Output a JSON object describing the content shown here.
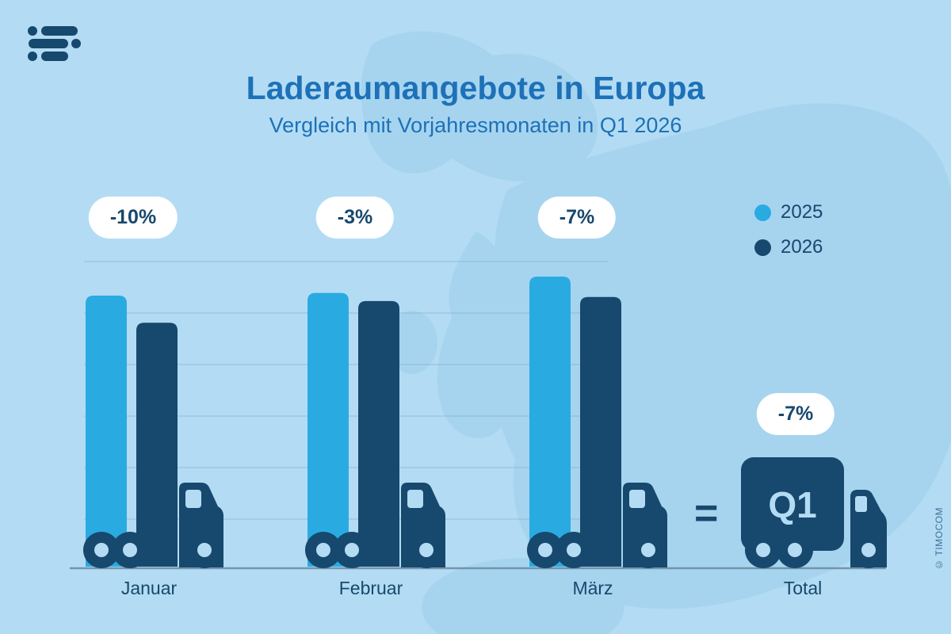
{
  "chart_data": {
    "type": "bar",
    "title": "Laderaumangebote in Europa",
    "subtitle": "Vergleich mit Vorjahresmonaten in Q1 2026",
    "categories": [
      "Januar",
      "Februar",
      "März"
    ],
    "series": [
      {
        "name": "2025",
        "color": "#29ABE2",
        "values": [
          100,
          101,
          107
        ]
      },
      {
        "name": "2026",
        "color": "#17486D",
        "values": [
          90,
          98,
          99.5
        ]
      }
    ],
    "change_labels": [
      "-10%",
      "-3%",
      "-7%"
    ],
    "total": {
      "label": "Total",
      "change_label": "-7%",
      "truck_text": "Q1",
      "equals_sign": "="
    },
    "grid": true,
    "legend_position": "right",
    "colors": {
      "background": "#B3DCF4",
      "map": "#A6D4EF",
      "title": "#1D71B8",
      "badge_bg": "#FFFFFF",
      "badge_text": "#17486D",
      "grid": "#7C9DB3",
      "axis": "#64869C"
    }
  },
  "footer": {
    "copyright": "© TIMOCOM"
  }
}
